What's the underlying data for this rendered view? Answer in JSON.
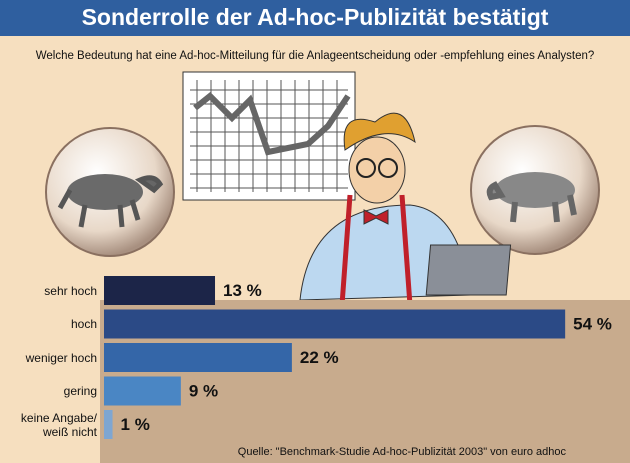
{
  "chart_data": {
    "type": "bar",
    "orientation": "horizontal",
    "title": "Sonderrolle der Ad-hoc-Publizität bestätigt",
    "subtitle": "Welche Bedeutung hat eine Ad-hoc-Mitteilung für die Anlageentscheidung oder -empfehlung eines Analysten?",
    "categories": [
      "sehr hoch",
      "hoch",
      "weniger hoch",
      "gering",
      "keine Angabe/ weiß nicht"
    ],
    "values": [
      13,
      54,
      22,
      9,
      1
    ],
    "value_labels": [
      "13 %",
      "54 %",
      "22 %",
      "9 %",
      "1 %"
    ],
    "colors": [
      "#1c2548",
      "#2b4a86",
      "#3466a8",
      "#4a86c4",
      "#7ea6d2"
    ],
    "source": "Quelle: \"Benchmark-Studie Ad-hoc-Publizität 2003\" von euro adhoc"
  }
}
